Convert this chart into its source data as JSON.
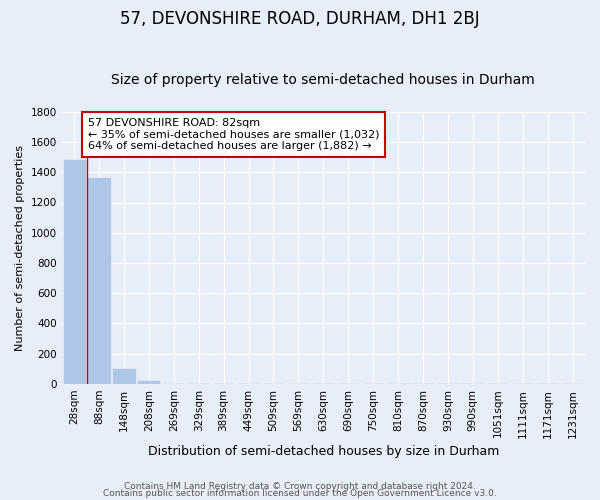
{
  "title": "57, DEVONSHIRE ROAD, DURHAM, DH1 2BJ",
  "subtitle": "Size of property relative to semi-detached houses in Durham",
  "xlabel": "Distribution of semi-detached houses by size in Durham",
  "ylabel": "Number of semi-detached properties",
  "categories": [
    "28sqm",
    "88sqm",
    "148sqm",
    "208sqm",
    "269sqm",
    "329sqm",
    "389sqm",
    "449sqm",
    "509sqm",
    "569sqm",
    "630sqm",
    "690sqm",
    "750sqm",
    "810sqm",
    "870sqm",
    "930sqm",
    "990sqm",
    "1051sqm",
    "1111sqm",
    "1171sqm",
    "1231sqm"
  ],
  "values": [
    1480,
    1365,
    98,
    22,
    2,
    0,
    0,
    0,
    0,
    0,
    0,
    0,
    0,
    0,
    0,
    0,
    0,
    0,
    0,
    0,
    0
  ],
  "bar_color": "#aec6e8",
  "property_line_x": 0.5,
  "annotation_line1": "57 DEVONSHIRE ROAD: 82sqm",
  "annotation_line2": "← 35% of semi-detached houses are smaller (1,032)",
  "annotation_line3": "64% of semi-detached houses are larger (1,882) →",
  "annotation_box_color": "#ffffff",
  "annotation_box_edgecolor": "#cc0000",
  "property_line_color": "#cc0000",
  "ylim": [
    0,
    1800
  ],
  "yticks": [
    0,
    200,
    400,
    600,
    800,
    1000,
    1200,
    1400,
    1600,
    1800
  ],
  "footer1": "Contains HM Land Registry data © Crown copyright and database right 2024.",
  "footer2": "Contains public sector information licensed under the Open Government Licence v3.0.",
  "background_color": "#e8eef7",
  "plot_bg_color": "#e8eef7",
  "grid_color": "#ffffff",
  "title_fontsize": 12,
  "subtitle_fontsize": 10,
  "xlabel_fontsize": 9,
  "ylabel_fontsize": 8,
  "tick_fontsize": 7.5,
  "annotation_fontsize": 8,
  "footer_fontsize": 6.5
}
